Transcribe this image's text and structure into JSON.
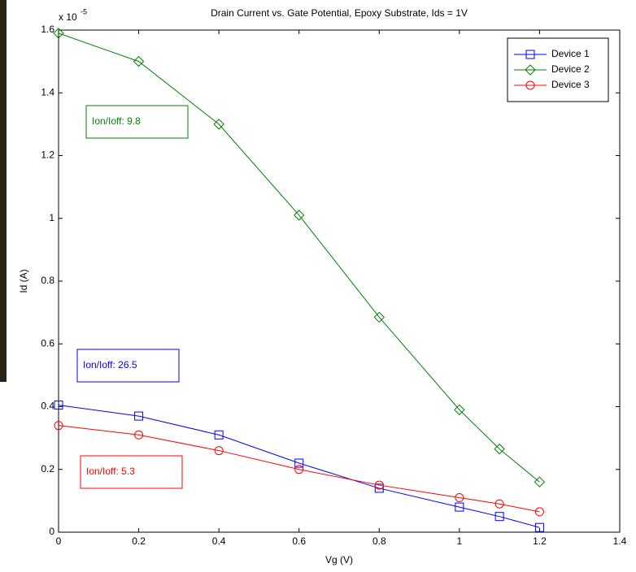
{
  "chart_data": {
    "type": "line",
    "title": "Drain Current vs. Gate Potential, Epoxy Substrate, Ids = 1V",
    "x_label": "Vg (V)",
    "y_label": "Id (A)",
    "y_multiplier": {
      "base": "x 10",
      "exponent": "-5"
    },
    "x": [
      0,
      0.2,
      0.4,
      0.6,
      0.8,
      1.0,
      1.1,
      1.2
    ],
    "series": [
      {
        "name": "Device 1",
        "color": "#0000ff",
        "marker": "square",
        "values": [
          0.405,
          0.37,
          0.31,
          0.22,
          0.14,
          0.08,
          0.05,
          0.015
        ]
      },
      {
        "name": "Device 2",
        "color": "#008000",
        "marker": "diamond",
        "values": [
          1.59,
          1.5,
          1.3,
          1.01,
          0.685,
          0.39,
          0.265,
          0.16
        ]
      },
      {
        "name": "Device 3",
        "color": "#ff0000",
        "marker": "circle",
        "values": [
          0.34,
          0.31,
          0.26,
          0.2,
          0.15,
          0.11,
          0.09,
          0.065
        ]
      }
    ],
    "annotations": [
      {
        "text": "Ion/Ioff: 9.8",
        "color": "#008000"
      },
      {
        "text": "Ion/Ioff: 26.5",
        "color": "#0000ff"
      },
      {
        "text": "Ion/Ioff: 5.3",
        "color": "#ff0000"
      }
    ],
    "xlim": [
      0,
      1.4
    ],
    "xticks": [
      0,
      0.2,
      0.4,
      0.6,
      0.8,
      1,
      1.2,
      1.4
    ],
    "ylim": [
      0,
      1.6
    ],
    "yticks": [
      0,
      0.2,
      0.4,
      0.6,
      0.8,
      1,
      1.2,
      1.4,
      1.6
    ],
    "grid": false,
    "legend": "upper right"
  }
}
